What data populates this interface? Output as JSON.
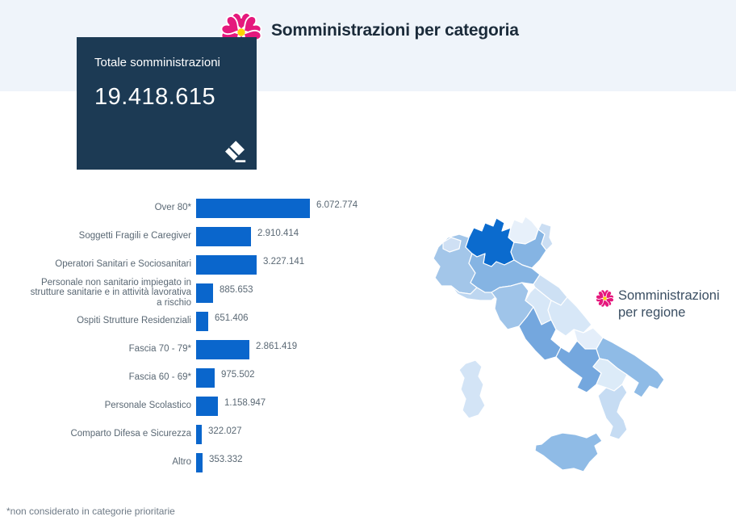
{
  "header": {
    "title": "Somministrazioni per categoria"
  },
  "total_card": {
    "label": "Totale somministrazioni",
    "value_display": "19.418.615"
  },
  "chart_data": {
    "type": "bar",
    "orientation": "horizontal",
    "title": "Somministrazioni per categoria",
    "categories": [
      "Over 80*",
      "Soggetti Fragili e Caregiver",
      "Operatori Sanitari e Sociosanitari",
      "Personale non sanitario impiegato in strutture sanitarie e in attività lavorativa a rischio",
      "Ospiti Strutture Residenziali",
      "Fascia 70 - 79*",
      "Fascia 60 - 69*",
      "Personale Scolastico",
      "Comparto Difesa e Sicurezza",
      "Altro"
    ],
    "values": [
      6072774,
      2910414,
      3227141,
      885653,
      651406,
      2861419,
      975502,
      1158947,
      322027,
      353332
    ],
    "value_labels": [
      "6.072.774",
      "2.910.414",
      "3.227.141",
      "885.653",
      "651.406",
      "2.861.419",
      "975.502",
      "1.158.947",
      "322.027",
      "353.332"
    ],
    "total": 19418615,
    "total_display": "19.418.615",
    "bar_color": "#0a66cc",
    "xlim": [
      0,
      6500000
    ],
    "grid": false,
    "legend": "none",
    "footnote": "*non considerato in categorie prioritarie"
  },
  "map_panel": {
    "label_line1": "Somministrazioni",
    "label_line2": "per regione",
    "type": "choropleth",
    "regions": [
      {
        "id": "piemonte",
        "name": "Piemonte",
        "color": "#a3c6e9"
      },
      {
        "id": "valle_daosta",
        "name": "Valle d'Aosta",
        "color": "#cfe0f4"
      },
      {
        "id": "lombardia",
        "name": "Lombardia",
        "color": "#0b6bce"
      },
      {
        "id": "trentino_alto_adige",
        "name": "Trentino-Alto Adige",
        "color": "#e7f0fa"
      },
      {
        "id": "veneto",
        "name": "Veneto",
        "color": "#85b4e3"
      },
      {
        "id": "friuli_venezia_giulia",
        "name": "Friuli-Venezia Giulia",
        "color": "#cbdef3"
      },
      {
        "id": "liguria",
        "name": "Liguria",
        "color": "#bdd6f0"
      },
      {
        "id": "emilia_romagna",
        "name": "Emilia-Romagna",
        "color": "#85b4e3"
      },
      {
        "id": "toscana",
        "name": "Toscana",
        "color": "#9fc4e9"
      },
      {
        "id": "marche",
        "name": "Marche",
        "color": "#cde0f4"
      },
      {
        "id": "umbria",
        "name": "Umbria",
        "color": "#d7e7f7"
      },
      {
        "id": "lazio",
        "name": "Lazio",
        "color": "#74a7de"
      },
      {
        "id": "abruzzo",
        "name": "Abruzzo",
        "color": "#d7e7f7"
      },
      {
        "id": "molise",
        "name": "Molise",
        "color": "#e4eefa"
      },
      {
        "id": "campania",
        "name": "Campania",
        "color": "#74a7de"
      },
      {
        "id": "puglia",
        "name": "Puglia",
        "color": "#8fbbe6"
      },
      {
        "id": "basilicata",
        "name": "Basilicata",
        "color": "#dcebf8"
      },
      {
        "id": "calabria",
        "name": "Calabria",
        "color": "#c6dcf3"
      },
      {
        "id": "sicilia",
        "name": "Sicilia",
        "color": "#8fbbe6"
      },
      {
        "id": "sardegna",
        "name": "Sardegna",
        "color": "#d3e4f6"
      }
    ]
  },
  "footnote": "*non considerato in categorie prioritarie",
  "colors": {
    "band": "#eff4fa",
    "card_bg": "#1c3a54",
    "bar": "#0a66cc",
    "flower_pink": "#e5197d",
    "flower_center": "#ffd400",
    "title_text": "#1b2b3a",
    "label_text": "#5a6874"
  }
}
